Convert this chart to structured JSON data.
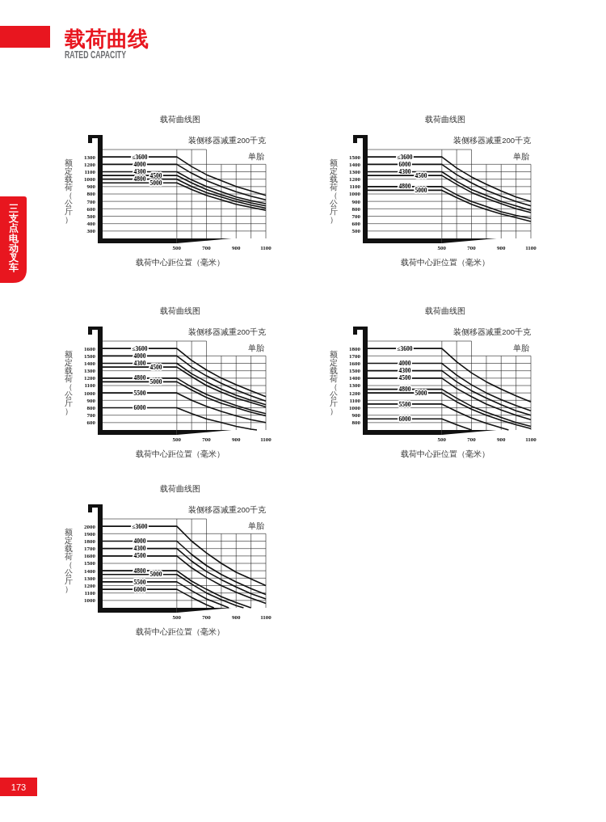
{
  "chart_data": [
    {
      "type": "other",
      "title": "载荷曲线",
      "subtitle": "RATED CAPACITY",
      "annotations": [
        "三支点电动叉车",
        "173"
      ]
    },
    {
      "type": "line",
      "title": "载荷曲线图",
      "xlabel": "载荷中心距位置（毫米）",
      "ylabel": "额定载荷（公斤）",
      "annotations": [
        "装侧移器减重200千克",
        "单胎"
      ],
      "x": [
        0,
        500,
        600,
        700,
        800,
        900,
        1000,
        1100
      ],
      "xlim": [
        0,
        1100
      ],
      "xticks": [
        500,
        {
          "value": 600,
          "label": null
        },
        700,
        {
          "value": 800,
          "label": null
        },
        900,
        {
          "value": 1000,
          "label": null
        },
        1100
      ],
      "ylim": [
        200,
        1400
      ],
      "yticks": [
        300,
        400,
        500,
        600,
        700,
        800,
        900,
        1000,
        1100,
        1200,
        1300,
        {
          "value": 1400,
          "label": null
        }
      ],
      "grid": true,
      "series": [
        {
          "name": "≤3600",
          "color": "#111111",
          "values": [
            1300,
            1300,
            1170,
            1060,
            980,
            900,
            840,
            780
          ]
        },
        {
          "name": "4000",
          "color": "#111111",
          "values": [
            1200,
            1200,
            1080,
            980,
            900,
            830,
            770,
            720
          ]
        },
        {
          "name": "4300",
          "color": "#111111",
          "values": [
            1100,
            1100,
            990,
            900,
            830,
            760,
            710,
            670
          ]
        },
        {
          "name": "4500",
          "color": "#111111",
          "values": [
            1050,
            1050,
            950,
            860,
            790,
            730,
            680,
            640
          ]
        },
        {
          "name": "4800",
          "color": "#111111",
          "values": [
            1000,
            1000,
            900,
            820,
            760,
            700,
            650,
            610
          ]
        },
        {
          "name": "5000",
          "color": "#111111",
          "values": [
            950,
            950,
            860,
            780,
            720,
            660,
            620,
            580
          ]
        }
      ]
    },
    {
      "type": "line",
      "title": "载荷曲线图",
      "xlabel": "载荷中心距位置（毫米）",
      "ylabel": "额定载荷（公斤）",
      "annotations": [
        "装侧移器减重200千克",
        "单胎"
      ],
      "x": [
        0,
        500,
        600,
        700,
        800,
        900,
        1000,
        1100
      ],
      "xlim": [
        0,
        1100
      ],
      "xticks": [
        500,
        {
          "value": 600,
          "label": null
        },
        700,
        {
          "value": 800,
          "label": null
        },
        900,
        {
          "value": 1000,
          "label": null
        },
        1100
      ],
      "ylim": [
        400,
        1600
      ],
      "yticks": [
        500,
        600,
        700,
        800,
        900,
        1000,
        1100,
        1200,
        1300,
        1400,
        1500,
        {
          "value": 1600,
          "label": null
        }
      ],
      "grid": true,
      "series": [
        {
          "name": "≤3600",
          "color": "#111111",
          "values": [
            1500,
            1500,
            1350,
            1230,
            1130,
            1040,
            960,
            900
          ]
        },
        {
          "name": "6000",
          "color": "#111111",
          "values": [
            1400,
            1400,
            1260,
            1150,
            1050,
            970,
            900,
            840
          ]
        },
        {
          "name": "4300",
          "color": "#111111",
          "values": [
            1300,
            1300,
            1170,
            1060,
            980,
            900,
            840,
            780
          ]
        },
        {
          "name": "4500",
          "color": "#111111",
          "values": [
            1250,
            1250,
            1130,
            1020,
            940,
            870,
            800,
            750
          ]
        },
        {
          "name": "4800",
          "color": "#111111",
          "values": [
            1100,
            1100,
            990,
            900,
            830,
            760,
            710,
            670
          ]
        },
        {
          "name": "5000",
          "color": "#111111",
          "values": [
            1050,
            1050,
            950,
            860,
            790,
            730,
            680,
            630
          ]
        }
      ]
    },
    {
      "type": "line",
      "title": "载荷曲线图",
      "xlabel": "载荷中心距位置（毫米）",
      "ylabel": "额定载荷（公斤）",
      "annotations": [
        "装侧移器减重200千克",
        "单胎"
      ],
      "x": [
        0,
        500,
        600,
        700,
        800,
        900,
        1000,
        1100
      ],
      "xlim": [
        0,
        1100
      ],
      "xticks": [
        500,
        {
          "value": 600,
          "label": null
        },
        700,
        {
          "value": 800,
          "label": null
        },
        900,
        {
          "value": 1000,
          "label": null
        },
        1100
      ],
      "ylim": [
        500,
        1700
      ],
      "yticks": [
        600,
        700,
        800,
        900,
        1000,
        1100,
        1200,
        1300,
        1400,
        1500,
        1600,
        {
          "value": 1700,
          "label": null
        }
      ],
      "grid": true,
      "series": [
        {
          "name": "≤3600",
          "color": "#111111",
          "values": [
            1600,
            1600,
            1440,
            1310,
            1200,
            1110,
            1030,
            950
          ]
        },
        {
          "name": "4000",
          "color": "#111111",
          "values": [
            1500,
            1500,
            1350,
            1230,
            1130,
            1040,
            960,
            890
          ]
        },
        {
          "name": "4300",
          "color": "#111111",
          "values": [
            1400,
            1400,
            1260,
            1150,
            1050,
            970,
            900,
            840
          ]
        },
        {
          "name": "4500",
          "color": "#111111",
          "values": [
            1350,
            1350,
            1220,
            1100,
            1010,
            930,
            870,
            810
          ]
        },
        {
          "name": "4800",
          "color": "#111111",
          "values": [
            1200,
            1200,
            1080,
            980,
            900,
            830,
            770,
            720
          ]
        },
        {
          "name": "5000",
          "color": "#111111",
          "values": [
            1150,
            1150,
            1040,
            940,
            860,
            800,
            740,
            690
          ]
        },
        {
          "name": "5500",
          "color": "#111111",
          "values": [
            1000,
            1000,
            900,
            820,
            750,
            690,
            640,
            600
          ]
        },
        {
          "name": "6000",
          "color": "#111111",
          "x": [
            0,
            500,
            600,
            700,
            800,
            900,
            1000,
            1040
          ],
          "values": [
            800,
            800,
            720,
            650,
            600,
            550,
            510,
            500
          ]
        }
      ]
    },
    {
      "type": "line",
      "title": "载荷曲线图",
      "xlabel": "载荷中心距位置（毫米）",
      "ylabel": "额定载荷（公斤）",
      "annotations": [
        "装侧移器减重200千克",
        "单胎"
      ],
      "x": [
        0,
        500,
        600,
        700,
        800,
        900,
        1000,
        1100
      ],
      "xlim": [
        0,
        1100
      ],
      "xticks": [
        500,
        {
          "value": 600,
          "label": null
        },
        700,
        {
          "value": 800,
          "label": null
        },
        900,
        {
          "value": 1000,
          "label": null
        },
        1100
      ],
      "ylim": [
        700,
        1900
      ],
      "yticks": [
        800,
        900,
        1000,
        1100,
        1200,
        1300,
        1400,
        1500,
        1600,
        1700,
        1800,
        {
          "value": 1900,
          "label": null
        }
      ],
      "grid": true,
      "series": [
        {
          "name": "≤3600",
          "color": "#111111",
          "values": [
            1800,
            1800,
            1620,
            1470,
            1350,
            1250,
            1160,
            1080
          ]
        },
        {
          "name": "4000",
          "color": "#111111",
          "values": [
            1600,
            1600,
            1440,
            1310,
            1200,
            1110,
            1030,
            960
          ]
        },
        {
          "name": "4300",
          "color": "#111111",
          "values": [
            1500,
            1500,
            1350,
            1230,
            1130,
            1040,
            960,
            900
          ]
        },
        {
          "name": "4500",
          "color": "#111111",
          "values": [
            1400,
            1400,
            1260,
            1150,
            1050,
            970,
            900,
            840
          ]
        },
        {
          "name": "4800",
          "color": "#111111",
          "values": [
            1250,
            1250,
            1130,
            1020,
            940,
            870,
            800,
            750
          ]
        },
        {
          "name": "5000",
          "color": "#111111",
          "values": [
            1200,
            1200,
            1080,
            980,
            900,
            830,
            770,
            720
          ]
        },
        {
          "name": "5500",
          "color": "#111111",
          "x": [
            0,
            500,
            600,
            700,
            800,
            900,
            950
          ],
          "values": [
            1050,
            1050,
            950,
            860,
            790,
            730,
            700
          ]
        },
        {
          "name": "6000",
          "color": "#111111",
          "x": [
            0,
            500,
            600,
            700
          ],
          "values": [
            850,
            850,
            770,
            700
          ]
        }
      ]
    },
    {
      "type": "line",
      "title": "载荷曲线图",
      "xlabel": "载荷中心距位置（毫米）",
      "ylabel": "额定载荷（公斤）",
      "annotations": [
        "装侧移器减重200千克",
        "单胎"
      ],
      "x": [
        0,
        500,
        600,
        700,
        800,
        900,
        1000,
        1100
      ],
      "xlim": [
        0,
        1100
      ],
      "xticks": [
        500,
        {
          "value": 600,
          "label": null
        },
        700,
        {
          "value": 800,
          "label": null
        },
        900,
        {
          "value": 1000,
          "label": null
        },
        1100
      ],
      "ylim": [
        900,
        2100
      ],
      "yticks": [
        1000,
        1100,
        1200,
        1300,
        1400,
        1500,
        1600,
        1700,
        1800,
        1900,
        2000,
        {
          "value": 2100,
          "label": null
        }
      ],
      "grid": true,
      "series": [
        {
          "name": "≤3600",
          "color": "#111111",
          "values": [
            2000,
            2000,
            1800,
            1640,
            1500,
            1380,
            1290,
            1200
          ]
        },
        {
          "name": "4000",
          "color": "#111111",
          "values": [
            1800,
            1800,
            1620,
            1470,
            1350,
            1250,
            1160,
            1080
          ]
        },
        {
          "name": "4300",
          "color": "#111111",
          "values": [
            1700,
            1700,
            1530,
            1390,
            1280,
            1180,
            1090,
            1020
          ]
        },
        {
          "name": "4500",
          "color": "#111111",
          "values": [
            1600,
            1600,
            1440,
            1310,
            1200,
            1110,
            1030,
            960
          ]
        },
        {
          "name": "4800",
          "color": "#111111",
          "x": [
            0,
            500,
            600,
            700,
            800,
            900,
            1000
          ],
          "values": [
            1400,
            1400,
            1260,
            1150,
            1050,
            970,
            900
          ]
        },
        {
          "name": "5000",
          "color": "#111111",
          "x": [
            0,
            500,
            600,
            700,
            800,
            900,
            950
          ],
          "values": [
            1350,
            1350,
            1220,
            1100,
            1010,
            930,
            900
          ]
        },
        {
          "name": "5500",
          "color": "#111111",
          "x": [
            0,
            500,
            600,
            700,
            800,
            850
          ],
          "values": [
            1250,
            1250,
            1130,
            1020,
            940,
            900
          ]
        },
        {
          "name": "6000",
          "color": "#111111",
          "x": [
            0,
            500,
            600,
            700,
            750
          ],
          "values": [
            1150,
            1150,
            1040,
            940,
            900
          ]
        }
      ]
    }
  ]
}
